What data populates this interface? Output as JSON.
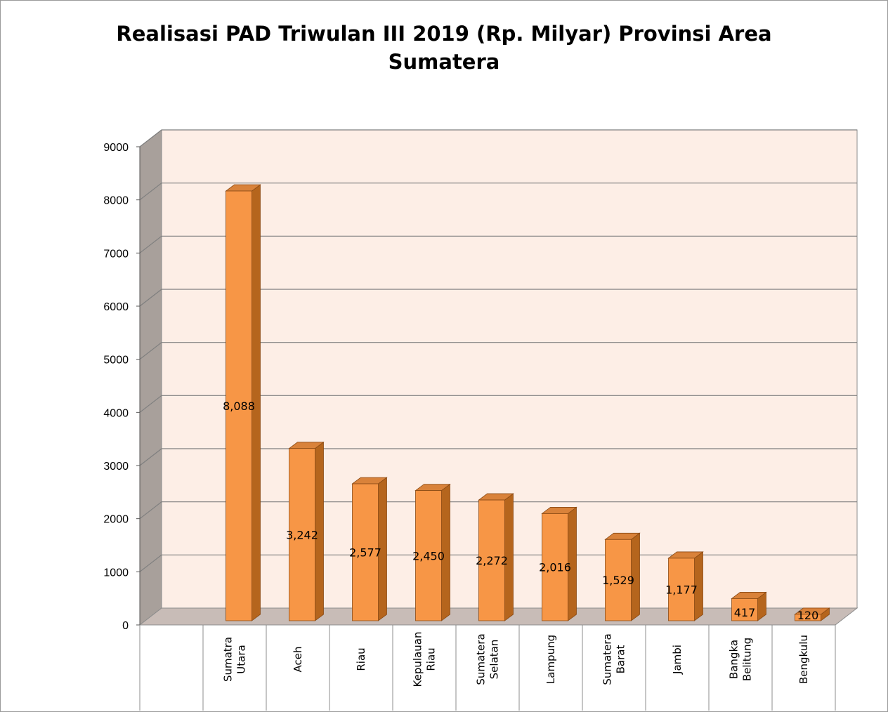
{
  "chart_data": {
    "type": "bar",
    "title_lines": [
      "Realisasi PAD Triwulan III 2019 (Rp. Milyar) Provinsi Area",
      "Sumatera"
    ],
    "categories": [
      [
        "Sumatra",
        "Utara"
      ],
      [
        "Aceh"
      ],
      [
        "Riau"
      ],
      [
        "Kepulauan",
        "Riau"
      ],
      [
        "Sumatera",
        "Selatan"
      ],
      [
        "Lampung"
      ],
      [
        "Sumatera",
        "Barat"
      ],
      [
        "Jambi"
      ],
      [
        "Bangka",
        "Belitung"
      ],
      [
        "Bengkulu"
      ]
    ],
    "values": [
      8088,
      3242,
      2577,
      2450,
      2272,
      2016,
      1529,
      1177,
      417,
      120
    ],
    "data_labels": [
      "8,088",
      "3,242",
      "2,577",
      "2,450",
      "2,272",
      "2,016",
      "1,529",
      "1,177",
      "417",
      "120"
    ],
    "yticks": [
      "0",
      "1000",
      "2000",
      "3000",
      "4000",
      "5000",
      "6000",
      "7000",
      "8000",
      "9000"
    ],
    "ylim": [
      0,
      9000
    ],
    "xlabel": "",
    "ylabel": "",
    "grid": true,
    "style": "3d-column",
    "colors": {
      "bar_front": "#f79646",
      "bar_side": "#b5651d",
      "bar_top": "#d9823a",
      "plot_wall": "#fdeee6",
      "side_wall": "#a8a09b",
      "floor": "#c8bcb7",
      "grid": "#7f7f7f"
    }
  }
}
